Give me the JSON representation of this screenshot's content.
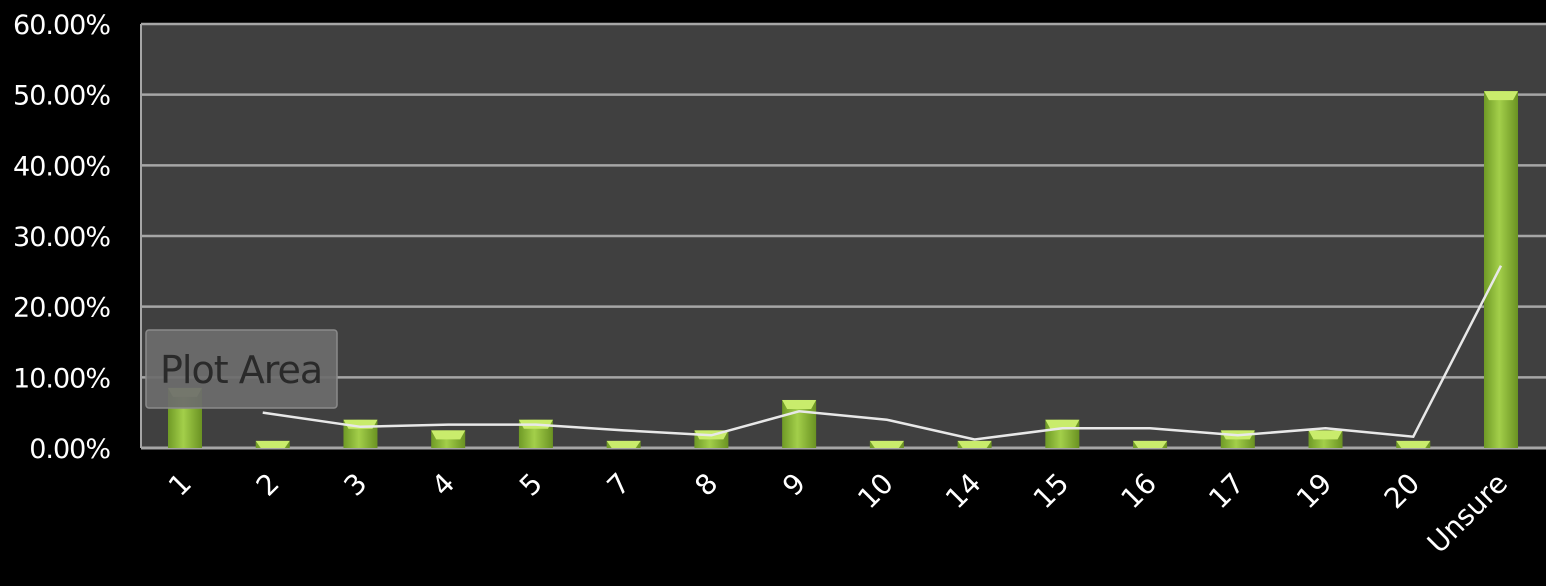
{
  "chart_data": {
    "type": "bar",
    "categories": [
      "1",
      "2",
      "3",
      "4",
      "5",
      "7",
      "8",
      "9",
      "10",
      "14",
      "15",
      "16",
      "17",
      "19",
      "20",
      "Unsure"
    ],
    "values": [
      8.5,
      1.0,
      4.0,
      2.5,
      4.0,
      1.0,
      2.5,
      6.8,
      1.0,
      1.0,
      4.0,
      1.0,
      2.5,
      2.5,
      1.0,
      50.5
    ],
    "trendline": [
      null,
      5.0,
      3.0,
      3.3,
      3.3,
      2.5,
      1.8,
      5.2,
      4.0,
      1.2,
      2.8,
      2.8,
      1.8,
      2.8,
      1.6,
      25.8
    ],
    "yticks": [
      "0.00%",
      "10.00%",
      "20.00%",
      "30.00%",
      "40.00%",
      "50.00%",
      "60.00%"
    ],
    "ylim": [
      0,
      60
    ],
    "grid": true,
    "colors": {
      "bar": "#8db935",
      "bar_top": "#c9ec6c",
      "plot_bg": "#404040",
      "gridline": "#a6a6a6",
      "trendline": "#e8e8e8"
    }
  },
  "tooltip": {
    "label": "Plot Area"
  }
}
